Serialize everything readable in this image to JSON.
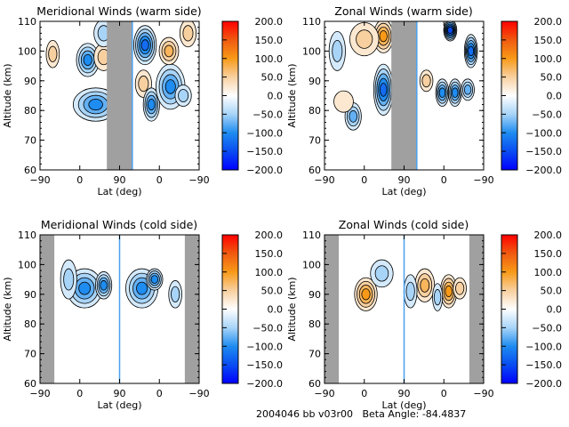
{
  "footer": {
    "text": "2004046 bb v03r00   Beta Angle: -84.4837"
  },
  "colorscale": {
    "stops": [
      {
        "value": -200,
        "color": "#0000ff"
      },
      {
        "value": -150,
        "color": "#0a4cf2"
      },
      {
        "value": -100,
        "color": "#1e8cf0"
      },
      {
        "value": -50,
        "color": "#a8d4f8"
      },
      {
        "value": 0,
        "color": "#ffffff"
      },
      {
        "value": 50,
        "color": "#f8d0a0"
      },
      {
        "value": 100,
        "color": "#f89a18"
      },
      {
        "value": 150,
        "color": "#f05a10"
      },
      {
        "value": 200,
        "color": "#ff0000"
      }
    ],
    "fill_region_color": "#a0a0a0"
  },
  "chart_data": [
    {
      "type": "heatmap",
      "id": "meridional-warm",
      "title": "Meridional Winds (warm side)",
      "xlabel": "Lat (deg)",
      "ylabel": "Altitude (km)",
      "xtick_labels": [
        "-90",
        "0",
        "90",
        "0",
        "-90"
      ],
      "yticks": [
        60,
        70,
        80,
        90,
        100,
        110
      ],
      "ylim": [
        60,
        110
      ],
      "colorbar": {
        "ticks": [
          "200.0",
          "150.0",
          "100.0",
          "50.0",
          "0.0",
          "-50.0",
          "-100.0",
          "-150.0",
          "-200.0"
        ],
        "range": [
          -200,
          200
        ]
      },
      "no_data_bands": [
        [
          0.42,
          0.58
        ]
      ],
      "divider_at": 0.58,
      "blobs": [
        {
          "x": 0.35,
          "y": 82,
          "rx": 0.13,
          "ry": 5,
          "v": -110
        },
        {
          "x": 0.3,
          "y": 97,
          "rx": 0.06,
          "ry": 5,
          "v": -90
        },
        {
          "x": 0.4,
          "y": 98,
          "rx": 0.05,
          "ry": 4,
          "v": 60
        },
        {
          "x": 0.4,
          "y": 106,
          "rx": 0.05,
          "ry": 4,
          "v": -60
        },
        {
          "x": 0.08,
          "y": 99,
          "rx": 0.03,
          "ry": 4,
          "v": 40
        },
        {
          "x": 0.66,
          "y": 102,
          "rx": 0.06,
          "ry": 6,
          "v": -130
        },
        {
          "x": 0.65,
          "y": 89,
          "rx": 0.04,
          "ry": 4,
          "v": 60
        },
        {
          "x": 0.7,
          "y": 82,
          "rx": 0.04,
          "ry": 5,
          "v": -90
        },
        {
          "x": 0.82,
          "y": 88,
          "rx": 0.08,
          "ry": 7,
          "v": -110
        },
        {
          "x": 0.81,
          "y": 100,
          "rx": 0.05,
          "ry": 4,
          "v": 80
        },
        {
          "x": 0.9,
          "y": 85,
          "rx": 0.04,
          "ry": 3,
          "v": -60
        },
        {
          "x": 0.93,
          "y": 106,
          "rx": 0.04,
          "ry": 4,
          "v": 50
        }
      ]
    },
    {
      "type": "heatmap",
      "id": "zonal-warm",
      "title": "Zonal Winds (warm side)",
      "xlabel": "Lat (deg)",
      "ylabel": "Altitude (km)",
      "xtick_labels": [
        "-90",
        "0",
        "90",
        "0",
        "-90"
      ],
      "yticks": [
        60,
        70,
        80,
        90,
        100,
        110
      ],
      "ylim": [
        60,
        110
      ],
      "colorbar": {
        "ticks": [
          "200.0",
          "150.0",
          "100.0",
          "50.0",
          "0.0",
          "-50.0",
          "-100.0",
          "-150.0",
          "-200.0"
        ],
        "range": [
          -200,
          200
        ]
      },
      "no_data_bands": [
        [
          0.42,
          0.58
        ]
      ],
      "divider_at": 0.58,
      "blobs": [
        {
          "x": 0.37,
          "y": 105,
          "rx": 0.05,
          "ry": 5,
          "v": 110
        },
        {
          "x": 0.25,
          "y": 104,
          "rx": 0.08,
          "ry": 5,
          "v": 50
        },
        {
          "x": 0.37,
          "y": 87,
          "rx": 0.05,
          "ry": 8,
          "v": -130
        },
        {
          "x": 0.18,
          "y": 78,
          "rx": 0.04,
          "ry": 4,
          "v": -80
        },
        {
          "x": 0.08,
          "y": 100,
          "rx": 0.04,
          "ry": 6,
          "v": -50
        },
        {
          "x": 0.12,
          "y": 83,
          "rx": 0.05,
          "ry": 3,
          "v": 30
        },
        {
          "x": 0.79,
          "y": 107,
          "rx": 0.03,
          "ry": 3,
          "v": -150
        },
        {
          "x": 0.92,
          "y": 100,
          "rx": 0.03,
          "ry": 5,
          "v": -130
        },
        {
          "x": 0.74,
          "y": 86,
          "rx": 0.03,
          "ry": 4,
          "v": -90
        },
        {
          "x": 0.82,
          "y": 86,
          "rx": 0.03,
          "ry": 4,
          "v": -90
        },
        {
          "x": 0.64,
          "y": 90,
          "rx": 0.03,
          "ry": 3,
          "v": 40
        },
        {
          "x": 0.9,
          "y": 87,
          "rx": 0.03,
          "ry": 3,
          "v": -70
        }
      ]
    },
    {
      "type": "heatmap",
      "id": "meridional-cold",
      "title": "Meridional Winds (cold side)",
      "xlabel": "Lat (deg)",
      "ylabel": "Altitude (km)",
      "xtick_labels": [
        "-90",
        "0",
        "90",
        "0",
        "-90"
      ],
      "yticks": [
        60,
        70,
        80,
        90,
        100,
        110
      ],
      "ylim": [
        60,
        110
      ],
      "colorbar": {
        "ticks": [
          "200.0",
          "150.0",
          "100.0",
          "50.0",
          "0.0",
          "-50.0",
          "-100.0",
          "-150.0",
          "-200.0"
        ],
        "range": [
          -200,
          200
        ]
      },
      "no_data_bands": [
        [
          0.0,
          0.09
        ],
        [
          0.91,
          1.0
        ]
      ],
      "divider_at": 0.5,
      "blobs": [
        {
          "x": 0.28,
          "y": 92,
          "rx": 0.1,
          "ry": 6,
          "v": -110
        },
        {
          "x": 0.4,
          "y": 93,
          "rx": 0.04,
          "ry": 4,
          "v": -90
        },
        {
          "x": 0.64,
          "y": 92,
          "rx": 0.09,
          "ry": 6,
          "v": -100
        },
        {
          "x": 0.72,
          "y": 95,
          "rx": 0.04,
          "ry": 3,
          "v": -90
        },
        {
          "x": 0.18,
          "y": 95,
          "rx": 0.04,
          "ry": 6,
          "v": -40
        },
        {
          "x": 0.85,
          "y": 90,
          "rx": 0.03,
          "ry": 4,
          "v": -40
        }
      ]
    },
    {
      "type": "heatmap",
      "id": "zonal-cold",
      "title": "Zonal Winds (cold side)",
      "xlabel": "Lat (deg)",
      "ylabel": "Altitude (km)",
      "xtick_labels": [
        "-90",
        "0",
        "90",
        "0",
        "-90"
      ],
      "yticks": [
        60,
        70,
        80,
        90,
        100,
        110
      ],
      "ylim": [
        60,
        110
      ],
      "colorbar": {
        "ticks": [
          "200.0",
          "150.0",
          "100.0",
          "50.0",
          "0.0",
          "-50.0",
          "-100.0",
          "-150.0",
          "-200.0"
        ],
        "range": [
          -200,
          200
        ]
      },
      "no_data_bands": [
        [
          0.0,
          0.09
        ],
        [
          0.91,
          1.0
        ]
      ],
      "divider_at": 0.5,
      "blobs": [
        {
          "x": 0.26,
          "y": 90,
          "rx": 0.06,
          "ry": 5,
          "v": 110
        },
        {
          "x": 0.36,
          "y": 97,
          "rx": 0.06,
          "ry": 4,
          "v": -60
        },
        {
          "x": 0.63,
          "y": 93,
          "rx": 0.05,
          "ry": 5,
          "v": 80
        },
        {
          "x": 0.78,
          "y": 91,
          "rx": 0.04,
          "ry": 5,
          "v": 110
        },
        {
          "x": 0.71,
          "y": 89,
          "rx": 0.02,
          "ry": 4,
          "v": -60
        },
        {
          "x": 0.54,
          "y": 91,
          "rx": 0.03,
          "ry": 5,
          "v": -40
        },
        {
          "x": 0.85,
          "y": 92,
          "rx": 0.03,
          "ry": 3,
          "v": 50
        }
      ]
    }
  ]
}
